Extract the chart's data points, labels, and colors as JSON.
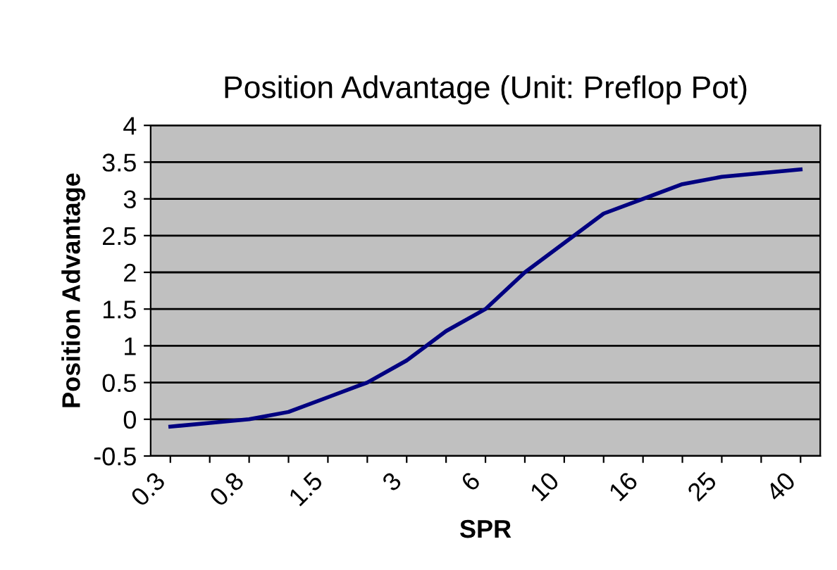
{
  "chart_data": {
    "type": "line",
    "title": "Position Advantage (Unit: Preflop Pot)",
    "xlabel": "SPR",
    "ylabel": "Position Advantage",
    "categories": [
      "0.3",
      null,
      "0.8",
      null,
      "1.5",
      null,
      "3",
      null,
      "6",
      null,
      "10",
      null,
      "16",
      null,
      "25",
      null,
      "40"
    ],
    "series": [
      {
        "color": "#000080",
        "values": [
          -0.1,
          -0.05,
          0.0,
          0.1,
          0.3,
          0.5,
          0.8,
          1.2,
          1.5,
          2.0,
          2.4,
          2.8,
          3.0,
          3.2,
          3.3,
          3.35,
          3.4
        ]
      }
    ],
    "ylim": [
      -0.5,
      4
    ],
    "yticks": [
      -0.5,
      0,
      0.5,
      1,
      1.5,
      2,
      2.5,
      3,
      3.5,
      4
    ],
    "grid": "y",
    "marker": "none",
    "line_style": "solid",
    "legend": false
  }
}
